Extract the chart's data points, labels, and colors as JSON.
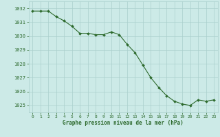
{
  "x": [
    0,
    1,
    2,
    3,
    4,
    5,
    6,
    7,
    8,
    9,
    10,
    11,
    12,
    13,
    14,
    15,
    16,
    17,
    18,
    19,
    20,
    21,
    22,
    23
  ],
  "y": [
    1031.8,
    1031.8,
    1031.8,
    1031.4,
    1031.1,
    1030.7,
    1030.2,
    1030.2,
    1030.1,
    1030.1,
    1030.3,
    1030.1,
    1029.4,
    1028.8,
    1027.9,
    1027.0,
    1026.3,
    1025.7,
    1025.3,
    1025.1,
    1025.0,
    1025.4,
    1025.3,
    1025.4
  ],
  "line_color": "#2d6a2d",
  "marker_color": "#2d6a2d",
  "bg_color": "#cceae7",
  "grid_color": "#aacfcc",
  "xlabel": "Graphe pression niveau de la mer (hPa)",
  "xlabel_color": "#2d6a2d",
  "tick_color": "#2d6a2d",
  "ylim": [
    1024.5,
    1032.5
  ],
  "xlim": [
    -0.5,
    23.5
  ],
  "yticks": [
    1025,
    1026,
    1027,
    1028,
    1029,
    1030,
    1031,
    1032
  ],
  "xticks": [
    0,
    1,
    2,
    3,
    4,
    5,
    6,
    7,
    8,
    9,
    10,
    11,
    12,
    13,
    14,
    15,
    16,
    17,
    18,
    19,
    20,
    21,
    22,
    23
  ]
}
